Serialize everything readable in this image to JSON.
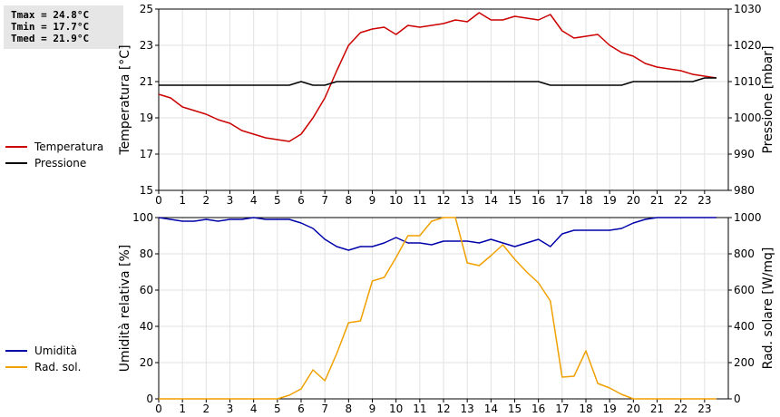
{
  "stats": {
    "tmax": "Tmax = 24.8°C",
    "tmin": "Tmin = 17.7°C",
    "tmed": "Tmed = 21.9°C"
  },
  "chart_data": [
    {
      "type": "line",
      "x_ticks": [
        "0",
        "1",
        "2",
        "3",
        "4",
        "5",
        "6",
        "7",
        "8",
        "9",
        "10",
        "11",
        "12",
        "13",
        "14",
        "15",
        "16",
        "17",
        "18",
        "19",
        "20",
        "21",
        "22",
        "23"
      ],
      "xlim": [
        0,
        24
      ],
      "y_left": {
        "label": "Temperatura [°C]",
        "lim": [
          15,
          25
        ],
        "ticks": [
          "15",
          "17",
          "19",
          "21",
          "23",
          "25"
        ]
      },
      "y_right": {
        "label": "Pressione [mbar]",
        "lim": [
          980,
          1030
        ],
        "ticks": [
          "980",
          "990",
          "1000",
          "1010",
          "1020",
          "1030"
        ]
      },
      "grid": true,
      "legend_position": "left",
      "series": [
        {
          "name": "Temperatura",
          "axis": "left",
          "color": "#cc0000",
          "x": [
            0,
            0.5,
            1,
            1.5,
            2,
            2.5,
            3,
            3.5,
            4,
            4.5,
            5,
            5.5,
            6,
            6.5,
            7,
            7.5,
            8,
            8.5,
            9,
            9.5,
            10,
            10.5,
            11,
            11.5,
            12,
            12.5,
            13,
            13.5,
            14,
            14.5,
            15,
            15.5,
            16,
            16.5,
            17,
            17.5,
            18,
            18.5,
            19,
            19.5,
            20,
            20.5,
            21,
            21.5,
            22,
            22.5,
            23,
            23.5
          ],
          "y": [
            20.3,
            20.1,
            19.6,
            19.4,
            19.2,
            18.9,
            18.7,
            18.3,
            18.1,
            17.9,
            17.8,
            17.7,
            18.1,
            19.0,
            20.1,
            21.6,
            23.0,
            23.7,
            23.9,
            24.0,
            23.6,
            24.1,
            24.0,
            24.1,
            24.2,
            24.4,
            24.3,
            24.8,
            24.4,
            24.4,
            24.6,
            24.5,
            24.4,
            24.7,
            23.8,
            23.4,
            23.5,
            23.6,
            23.0,
            22.6,
            22.4,
            22.0,
            21.8,
            21.7,
            21.6,
            21.4,
            21.3,
            21.2
          ]
        },
        {
          "name": "Pressione",
          "axis": "right",
          "color": "#000000",
          "x": [
            0,
            0.5,
            1,
            1.5,
            2,
            2.5,
            3,
            3.5,
            4,
            4.5,
            5,
            5.5,
            6,
            6.5,
            7,
            7.5,
            8,
            8.5,
            9,
            9.5,
            10,
            10.5,
            11,
            11.5,
            12,
            12.5,
            13,
            13.5,
            14,
            14.5,
            15,
            15.5,
            16,
            16.5,
            17,
            17.5,
            18,
            18.5,
            19,
            19.5,
            20,
            20.5,
            21,
            21.5,
            22,
            22.5,
            23,
            23.5
          ],
          "y": [
            1009,
            1009,
            1009,
            1009,
            1009,
            1009,
            1009,
            1009,
            1009,
            1009,
            1009,
            1009,
            1010,
            1009,
            1009,
            1010,
            1010,
            1010,
            1010,
            1010,
            1010,
            1010,
            1010,
            1010,
            1010,
            1010,
            1010,
            1010,
            1010,
            1010,
            1010,
            1010,
            1010,
            1009,
            1009,
            1009,
            1009,
            1009,
            1009,
            1009,
            1010,
            1010,
            1010,
            1010,
            1010,
            1010,
            1011,
            1011
          ]
        }
      ]
    },
    {
      "type": "line",
      "x_ticks": [
        "0",
        "1",
        "2",
        "3",
        "4",
        "5",
        "6",
        "7",
        "8",
        "9",
        "10",
        "11",
        "12",
        "13",
        "14",
        "15",
        "16",
        "17",
        "18",
        "19",
        "20",
        "21",
        "22",
        "23"
      ],
      "xlim": [
        0,
        24
      ],
      "y_left": {
        "label": "Umidità relativa [%]",
        "lim": [
          0,
          100
        ],
        "ticks": [
          "0",
          "20",
          "40",
          "60",
          "80",
          "100"
        ]
      },
      "y_right": {
        "label": "Rad. solare [W/mq]",
        "lim": [
          0,
          1000
        ],
        "ticks": [
          "0",
          "200",
          "400",
          "600",
          "800",
          "1000"
        ]
      },
      "grid": true,
      "legend_position": "left",
      "series": [
        {
          "name": "Umidità",
          "axis": "left",
          "color": "#0000aa",
          "x": [
            0,
            0.5,
            1,
            1.5,
            2,
            2.5,
            3,
            3.5,
            4,
            4.5,
            5,
            5.5,
            6,
            6.5,
            7,
            7.5,
            8,
            8.5,
            9,
            9.5,
            10,
            10.5,
            11,
            11.5,
            12,
            12.5,
            13,
            13.5,
            14,
            14.5,
            15,
            15.5,
            16,
            16.5,
            17,
            17.5,
            18,
            18.5,
            19,
            19.5,
            20,
            20.5,
            21,
            21.5,
            22,
            22.5,
            23,
            23.5
          ],
          "y": [
            100,
            99,
            98,
            98,
            99,
            98,
            99,
            99,
            100,
            99,
            99,
            99,
            97,
            94,
            88,
            84,
            82,
            84,
            84,
            86,
            89,
            86,
            86,
            85,
            87,
            87,
            87,
            86,
            88,
            86,
            84,
            86,
            88,
            84,
            91,
            93,
            93,
            93,
            93,
            94,
            97,
            99,
            100,
            100,
            100,
            100,
            100,
            100
          ]
        },
        {
          "name": "Rad. sol.",
          "axis": "right",
          "color": "#f0a000",
          "x": [
            0,
            0.5,
            1,
            1.5,
            2,
            2.5,
            3,
            3.5,
            4,
            4.5,
            5,
            5.5,
            6,
            6.5,
            7,
            7.5,
            8,
            8.5,
            9,
            9.5,
            10,
            10.5,
            11,
            11.5,
            12,
            12.5,
            13,
            13.5,
            14,
            14.5,
            15,
            15.5,
            16,
            16.5,
            17,
            17.5,
            18,
            18.5,
            19,
            19.5,
            20,
            20.5,
            21,
            21.5,
            22,
            22.5,
            23,
            23.5
          ],
          "y": [
            0,
            0,
            0,
            0,
            0,
            0,
            0,
            0,
            0,
            0,
            0,
            20,
            55,
            160,
            100,
            250,
            420,
            430,
            650,
            670,
            780,
            900,
            900,
            980,
            1000,
            1000,
            750,
            735,
            790,
            850,
            770,
            700,
            640,
            540,
            120,
            125,
            265,
            85,
            60,
            25,
            0,
            0,
            0,
            0,
            0,
            0,
            0,
            0
          ]
        }
      ]
    }
  ]
}
